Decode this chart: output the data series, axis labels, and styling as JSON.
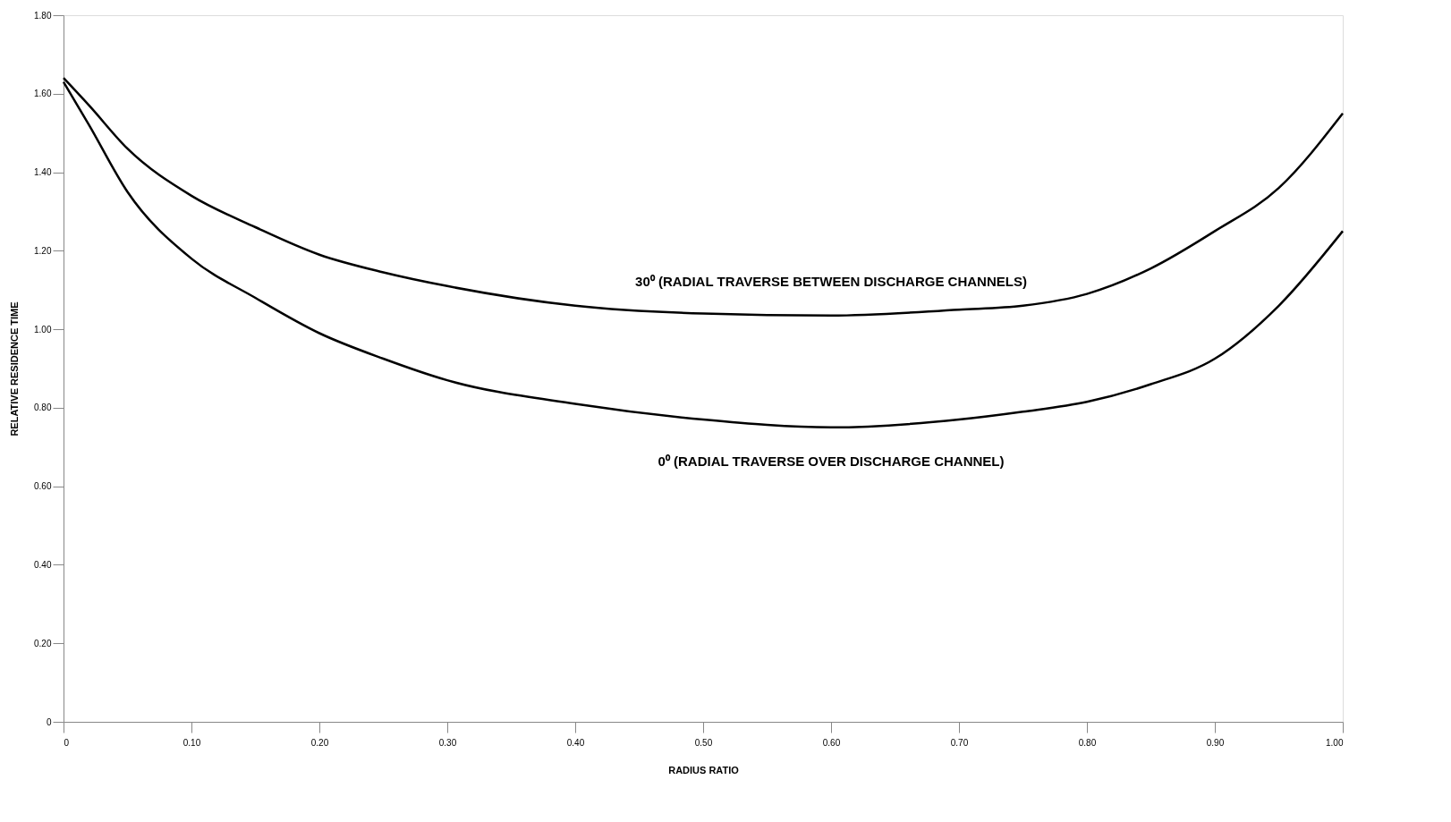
{
  "chart_data": {
    "type": "line",
    "xlabel": "RADIUS RATIO",
    "ylabel": "RELATIVE RESIDENCE TIME",
    "x": [
      0,
      0.02,
      0.05,
      0.1,
      0.15,
      0.2,
      0.25,
      0.3,
      0.4,
      0.5,
      0.6,
      0.7,
      0.75,
      0.8,
      0.85,
      0.9,
      0.95,
      1.0
    ],
    "series": [
      {
        "name": "30⁰ (RADIAL TRAVERSE BETWEEN DISCHARGE CHANNELS)",
        "color": "#000000",
        "values": [
          1.64,
          1.57,
          1.46,
          1.34,
          1.26,
          1.19,
          1.145,
          1.11,
          1.06,
          1.04,
          1.035,
          1.05,
          1.06,
          1.09,
          1.155,
          1.25,
          1.36,
          1.55
        ]
      },
      {
        "name": "0⁰ (RADIAL TRAVERSE OVER DISCHARGE CHANNEL)",
        "color": "#000000",
        "values": [
          1.63,
          1.52,
          1.35,
          1.18,
          1.08,
          0.99,
          0.925,
          0.87,
          0.81,
          0.77,
          0.75,
          0.77,
          0.79,
          0.815,
          0.86,
          0.925,
          1.06,
          1.25
        ]
      }
    ],
    "xlim": [
      0,
      1.0
    ],
    "ylim": [
      0,
      1.8
    ],
    "xticks": [
      0,
      {
        "value": 0.1,
        "label": "0.10"
      },
      {
        "value": 0.2,
        "label": "0.20"
      },
      {
        "value": 0.3,
        "label": "0.30"
      },
      {
        "value": 0.4,
        "label": "0.40"
      },
      {
        "value": 0.5,
        "label": "0.50"
      },
      {
        "value": 0.6,
        "label": "0.60"
      },
      {
        "value": 0.7,
        "label": "0.70"
      },
      {
        "value": 0.8,
        "label": "0.80"
      },
      {
        "value": 0.9,
        "label": "0.90"
      },
      {
        "value": 1.0,
        "label": "1.00"
      }
    ],
    "yticks": [
      0,
      {
        "value": 0.2,
        "label": "0.20"
      },
      {
        "value": 0.4,
        "label": "0.40"
      },
      {
        "value": 0.6,
        "label": "0.60"
      },
      {
        "value": 0.8,
        "label": "0.80"
      },
      {
        "value": 1.0,
        "label": "1.00"
      },
      {
        "value": 1.2,
        "label": "1.20"
      },
      {
        "value": 1.4,
        "label": "1.40"
      },
      {
        "value": 1.6,
        "label": "1.60"
      },
      {
        "value": 1.8,
        "label": "1.80"
      }
    ],
    "grid": false,
    "legend": false,
    "marker": "none",
    "line_style": "solid"
  }
}
